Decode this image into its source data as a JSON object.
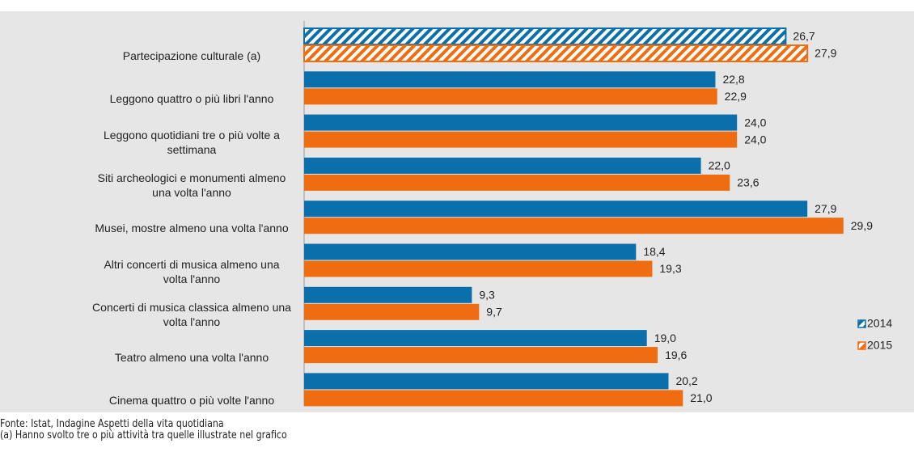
{
  "chart_data": {
    "type": "bar",
    "orientation": "horizontal",
    "categories": [
      "Partecipazione culturale (a)",
      "Leggono quattro o più libri l'anno",
      "Leggono quotidiani  tre o più volte a settimana",
      "Siti archeologici e monumenti almeno una volta l'anno",
      "Musei, mostre almeno una volta l'anno",
      "Altri concerti di musica almeno una volta l'anno",
      "Concerti di musica classica almeno una volta l'anno",
      "Teatro almeno una volta l'anno",
      "Cinema  quattro o più volte l'anno"
    ],
    "series": [
      {
        "name": "2014",
        "color": "#0a6fab",
        "values": [
          26.7,
          22.8,
          24.0,
          22.0,
          27.9,
          18.4,
          9.3,
          19.0,
          20.2
        ],
        "value_labels": [
          "26,7",
          "22,8",
          "24,0",
          "22,0",
          "27,9",
          "18,4",
          "9,3",
          "19,0",
          "20,2"
        ]
      },
      {
        "name": "2015",
        "color": "#ef6d10",
        "values": [
          27.9,
          22.9,
          24.0,
          23.6,
          29.9,
          19.3,
          9.7,
          19.6,
          21.0
        ],
        "value_labels": [
          "27,9",
          "22,9",
          "24,0",
          "23,6",
          "29,9",
          "19,3",
          "9,7",
          "19,6",
          "21,0"
        ]
      }
    ],
    "hatched_categories": [
      0
    ],
    "legend": "right",
    "notes": [
      "Fonte: Istat, Indagine Aspetti della vita quotidiana",
      "(a) Hanno svolto tre o più attività tra quelle illustrate nel grafico"
    ]
  }
}
